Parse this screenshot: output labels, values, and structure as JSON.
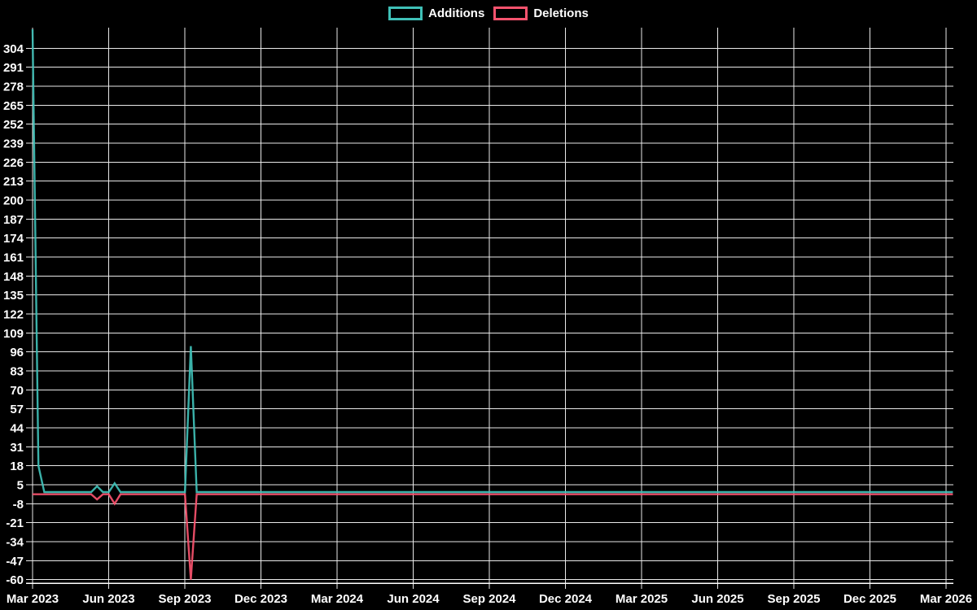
{
  "legend": {
    "items": [
      {
        "label": "Additions",
        "color": "#3fc0b7"
      },
      {
        "label": "Deletions",
        "color": "#f9536e"
      }
    ]
  },
  "chart_data": {
    "type": "line",
    "title": "",
    "xlabel": "",
    "ylabel": "",
    "background": "#000000",
    "grid": true,
    "grid_color": "#e9e9e9",
    "axis_color": "#ffffff",
    "legend_position": "top-center",
    "x_unit": "weeks since Mar 2023 (weekly data points)",
    "x_tick_labels": [
      "Mar 2023",
      "Jun 2023",
      "Sep 2023",
      "Dec 2023",
      "Mar 2024",
      "Jun 2024",
      "Sep 2024",
      "Dec 2024",
      "Mar 2025",
      "Jun 2025",
      "Sep 2025",
      "Dec 2025",
      "Mar 2026"
    ],
    "y_ticks": [
      304,
      291,
      278,
      265,
      252,
      239,
      226,
      213,
      200,
      187,
      174,
      161,
      148,
      135,
      122,
      109,
      96,
      83,
      70,
      57,
      44,
      31,
      18,
      5,
      -8,
      -21,
      -34,
      -47,
      -60
    ],
    "y_tick_step": 13,
    "ylim": [
      -62,
      318
    ],
    "series": [
      {
        "name": "Additions",
        "color": "#3fc0b7",
        "points": [
          [
            0,
            317
          ],
          [
            1,
            18
          ],
          [
            2,
            0
          ],
          [
            10,
            0
          ],
          [
            11,
            4
          ],
          [
            12,
            0
          ],
          [
            13,
            0
          ],
          [
            14,
            6
          ],
          [
            15,
            0
          ],
          [
            26,
            0
          ],
          [
            27,
            100
          ],
          [
            28,
            0
          ],
          [
            157,
            0
          ]
        ]
      },
      {
        "name": "Deletions",
        "color": "#f9536e",
        "points": [
          [
            0,
            -1.5
          ],
          [
            1,
            -1.5
          ],
          [
            10,
            -1.5
          ],
          [
            11,
            -5
          ],
          [
            12,
            -1.5
          ],
          [
            13,
            -1.5
          ],
          [
            14,
            -8
          ],
          [
            15,
            -1.5
          ],
          [
            26,
            -1.5
          ],
          [
            27,
            -60
          ],
          [
            28,
            -1.5
          ],
          [
            157,
            -1.5
          ]
        ]
      }
    ]
  }
}
